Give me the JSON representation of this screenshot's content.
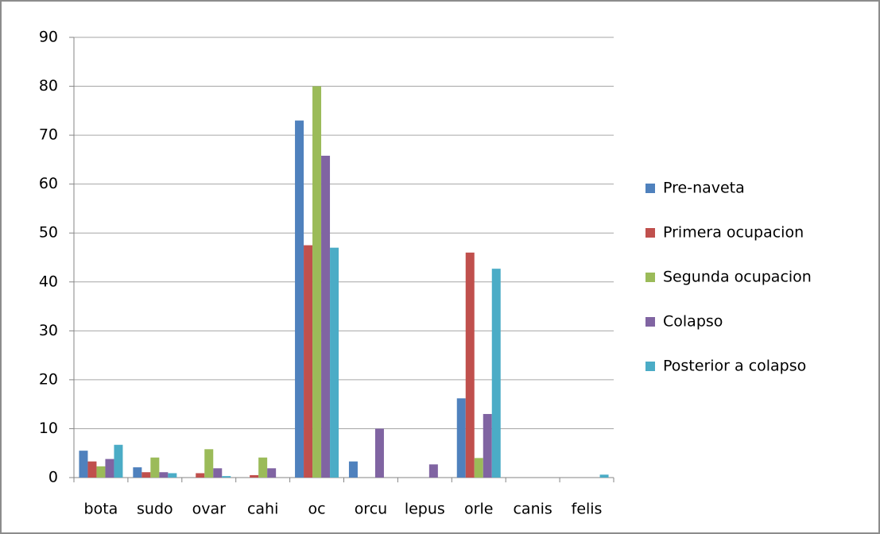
{
  "chart_data": {
    "type": "bar",
    "categories": [
      "bota",
      "sudo",
      "ovar",
      "cahi",
      "oc",
      "orcu",
      "lepus",
      "orle",
      "canis",
      "felis"
    ],
    "series": [
      {
        "name": "Pre-naveta",
        "color": "#4f81bd",
        "values": [
          5.5,
          2.1,
          0,
          0,
          73,
          3.3,
          0,
          16.2,
          0,
          0
        ]
      },
      {
        "name": "Primera ocupacion",
        "color": "#c0504d",
        "values": [
          3.3,
          1.1,
          0.9,
          0.5,
          47.5,
          0,
          0,
          46,
          0,
          0
        ]
      },
      {
        "name": "Segunda ocupacion",
        "color": "#9bbb59",
        "values": [
          2.3,
          4.1,
          5.8,
          4.1,
          80,
          0,
          0,
          4,
          0,
          0
        ]
      },
      {
        "name": "Colapso",
        "color": "#8064a2",
        "values": [
          3.8,
          1.1,
          1.9,
          1.9,
          65.8,
          10,
          2.7,
          13,
          0,
          0
        ]
      },
      {
        "name": "Posterior a colapso",
        "color": "#4bacc6",
        "values": [
          6.7,
          0.9,
          0.3,
          0,
          47,
          0,
          0,
          42.7,
          0,
          0.6
        ]
      }
    ],
    "ylim": [
      0,
      90
    ],
    "yticks": [
      0,
      10,
      20,
      30,
      40,
      50,
      60,
      70,
      80,
      90
    ],
    "grid": true,
    "legend": "right"
  }
}
